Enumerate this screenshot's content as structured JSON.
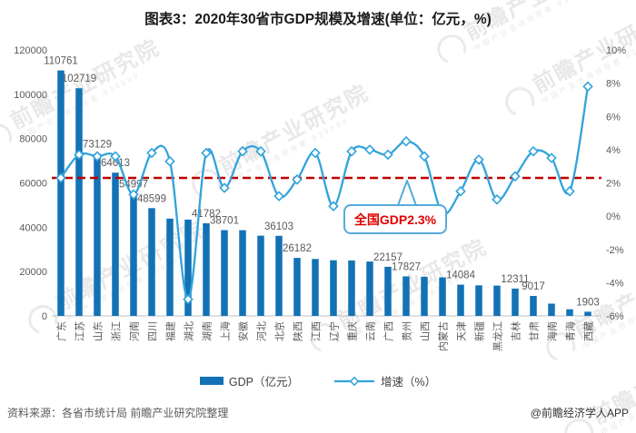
{
  "title": "图表3：2020年30省市GDP规模及增速(单位：亿元，%)",
  "colors": {
    "bar": "#1272b5",
    "line": "#31a3db",
    "red": "#c00000",
    "calloutBorder": "#54abdb",
    "axisText": "#595959"
  },
  "chart_data": {
    "type": "bar",
    "categories": [
      "广东",
      "江苏",
      "山东",
      "浙江",
      "河南",
      "四川",
      "福建",
      "湖北",
      "湖南",
      "上海",
      "安徽",
      "河北",
      "北京",
      "陕西",
      "江西",
      "辽宁",
      "重庆",
      "云南",
      "广西",
      "贵州",
      "山西",
      "内蒙古",
      "天津",
      "新疆",
      "黑龙江",
      "吉林",
      "甘肃",
      "海南",
      "青海",
      "西藏"
    ],
    "series": [
      {
        "name": "GDP（亿元）",
        "type": "bar",
        "axis": "left",
        "values": [
          110761,
          102719,
          73129,
          64613,
          54997,
          48599,
          43904,
          43443,
          41782,
          38701,
          38681,
          36207,
          36103,
          26182,
          25692,
          25115,
          25003,
          24522,
          22157,
          17827,
          17652,
          17360,
          14084,
          13798,
          13699,
          12311,
          9017,
          5532,
          3006,
          1903
        ]
      },
      {
        "name": "增速（%）",
        "type": "line",
        "axis": "right",
        "values": [
          2.3,
          3.7,
          3.6,
          3.6,
          1.3,
          3.8,
          3.3,
          -5.0,
          3.8,
          1.7,
          3.9,
          3.9,
          1.2,
          2.2,
          3.8,
          0.6,
          3.9,
          4.0,
          3.7,
          4.5,
          3.6,
          0.2,
          1.5,
          3.4,
          1.0,
          2.4,
          3.9,
          3.5,
          1.5,
          7.8
        ]
      }
    ],
    "labeled_indices": [
      0,
      1,
      2,
      3,
      4,
      5,
      8,
      9,
      12,
      13,
      18,
      19,
      22,
      25,
      26,
      29
    ],
    "left_axis": {
      "min": 0,
      "max": 120000,
      "step": 20000
    },
    "right_axis": {
      "min": -6,
      "max": 10,
      "step": 2,
      "suffix": "%"
    },
    "reference_line": {
      "value": 2.3,
      "label": "全国GDP2.3%"
    }
  },
  "annotation": {
    "text": "全国GDP2.3%"
  },
  "legend": {
    "gdp": "GDP（亿元）",
    "growth": "增速（%）"
  },
  "footer": {
    "source": "资料来源：各省市统计局 前瞻产业研究院整理",
    "credit": "@前瞻经济学人APP"
  },
  "watermark": {
    "text": "前瞻产业研究院",
    "subtext": "中国产业咨询领导者 839599"
  }
}
